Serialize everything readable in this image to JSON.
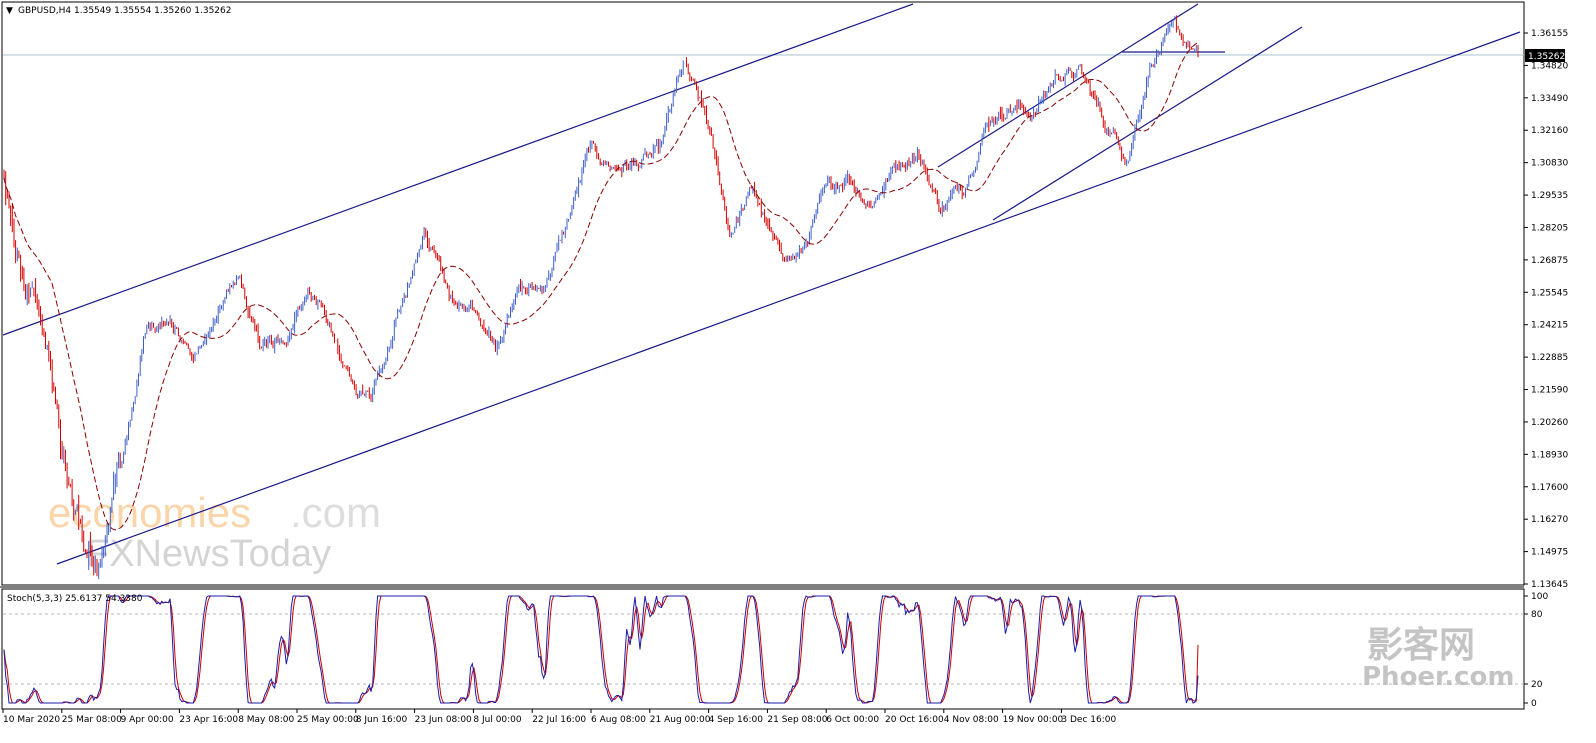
{
  "header": {
    "arrow": "▼",
    "symbol_line": "GBPUSD,H4  1.35549 1.35554 1.35260 1.35262"
  },
  "price_axis": {
    "labels": [
      "1.36155",
      "1.34820",
      "1.33490",
      "1.32160",
      "1.30830",
      "1.29535",
      "1.28205",
      "1.26875",
      "1.25545",
      "1.24215",
      "1.22885",
      "1.21590",
      "1.20260",
      "1.18930",
      "1.17600",
      "1.16270",
      "1.14975",
      "1.13645"
    ],
    "current_price": "1.35262"
  },
  "time_axis": {
    "labels": [
      "10 Mar 2020",
      "25 Mar 08:00",
      "9 Apr 00:00",
      "23 Apr 16:00",
      "8 May 08:00",
      "25 May 00:00",
      "8 Jun 16:00",
      "23 Jun 08:00",
      "8 Jul 00:00",
      "22 Jul 16:00",
      "6 Aug 08:00",
      "21 Aug 00:00",
      "4 Sep 16:00",
      "21 Sep 08:00",
      "6 Oct 00:00",
      "20 Oct 16:00",
      "4 Nov 08:00",
      "19 Nov 00:00",
      "3 Dec 16:00"
    ]
  },
  "indicator": {
    "label": "Stoch(5,3,3) 25.6137 54.3380",
    "levels": [
      "100",
      "80",
      "20",
      "0"
    ]
  },
  "watermarks": {
    "brand_a": "economies",
    "brand_b": ".com",
    "brand_c": "FXNewsToday",
    "brand_d": "影客网",
    "brand_e": "Phoer.com"
  },
  "colors": {
    "bull": "#4060c8",
    "bear": "#d40000",
    "ma": "#8b0000",
    "trendline": "#1a1a8c",
    "stoch_main": "#1c1ca8",
    "stoch_signal": "#cc0000",
    "price_line": "#a7c3d3"
  },
  "chart_data": {
    "type": "candlestick",
    "symbol": "GBPUSD",
    "timeframe": "H4",
    "ohlc_last": {
      "open": 1.35549,
      "high": 1.35554,
      "low": 1.3526,
      "close": 1.35262
    },
    "ylim": [
      1.1333,
      1.3702
    ],
    "anchors": [
      {
        "t": "10 Mar 2020",
        "price": 1.3
      },
      {
        "t": "13 Mar",
        "price": 1.262
      },
      {
        "t": "16 Mar",
        "price": 1.228
      },
      {
        "t": "18 Mar",
        "price": 1.16
      },
      {
        "t": "19 Mar",
        "price": 1.145
      },
      {
        "t": "20 Mar",
        "price": 1.18
      },
      {
        "t": "25 Mar 08:00",
        "price": 1.239
      },
      {
        "t": "27 Mar",
        "price": 1.245
      },
      {
        "t": "1 Apr",
        "price": 1.23
      },
      {
        "t": "9 Apr 00:00",
        "price": 1.247
      },
      {
        "t": "14 Apr",
        "price": 1.262
      },
      {
        "t": "21 Apr",
        "price": 1.232
      },
      {
        "t": "23 Apr 16:00",
        "price": 1.236
      },
      {
        "t": "30 Apr",
        "price": 1.26
      },
      {
        "t": "8 May 08:00",
        "price": 1.238
      },
      {
        "t": "15 May",
        "price": 1.212
      },
      {
        "t": "25 May 00:00",
        "price": 1.219
      },
      {
        "t": "1 Jun",
        "price": 1.25
      },
      {
        "t": "10 Jun",
        "price": 1.281
      },
      {
        "t": "12 Jun",
        "price": 1.256
      },
      {
        "t": "23 Jun 08:00",
        "price": 1.25
      },
      {
        "t": "29 Jun",
        "price": 1.232
      },
      {
        "t": "8 Jul 00:00",
        "price": 1.256
      },
      {
        "t": "15 Jul",
        "price": 1.257
      },
      {
        "t": "22 Jul 16:00",
        "price": 1.282
      },
      {
        "t": "30 Jul",
        "price": 1.313
      },
      {
        "t": "6 Aug 08:00",
        "price": 1.307
      },
      {
        "t": "14 Aug",
        "price": 1.308
      },
      {
        "t": "21 Aug 00:00",
        "price": 1.312
      },
      {
        "t": "1 Sep",
        "price": 1.348
      },
      {
        "t": "4 Sep 16:00",
        "price": 1.326
      },
      {
        "t": "10 Sep",
        "price": 1.28
      },
      {
        "t": "15 Sep",
        "price": 1.298
      },
      {
        "t": "21 Sep 08:00",
        "price": 1.272
      },
      {
        "t": "23 Sep",
        "price": 1.27
      },
      {
        "t": "6 Oct 00:00",
        "price": 1.294
      },
      {
        "t": "12 Oct",
        "price": 1.304
      },
      {
        "t": "14 Oct",
        "price": 1.292
      },
      {
        "t": "20 Oct 16:00",
        "price": 1.306
      },
      {
        "t": "21 Oct",
        "price": 1.314
      },
      {
        "t": "2 Nov",
        "price": 1.29
      },
      {
        "t": "4 Nov 08:00",
        "price": 1.3
      },
      {
        "t": "11 Nov",
        "price": 1.326
      },
      {
        "t": "19 Nov 00:00",
        "price": 1.332
      },
      {
        "t": "23 Nov",
        "price": 1.329
      },
      {
        "t": "1 Dec",
        "price": 1.345
      },
      {
        "t": "3 Dec 16:00",
        "price": 1.345
      },
      {
        "t": "9 Dec",
        "price": 1.325
      },
      {
        "t": "11 Dec",
        "price": 1.312
      },
      {
        "t": "16 Dec",
        "price": 1.351
      },
      {
        "t": "17 Dec",
        "price": 1.362
      },
      {
        "t": "18 Dec",
        "price": 1.3526
      }
    ],
    "stochastic": {
      "k": 25.6137,
      "d": 54.338,
      "levels": [
        80,
        20
      ],
      "range": [
        0,
        100
      ]
    },
    "grid": false
  }
}
